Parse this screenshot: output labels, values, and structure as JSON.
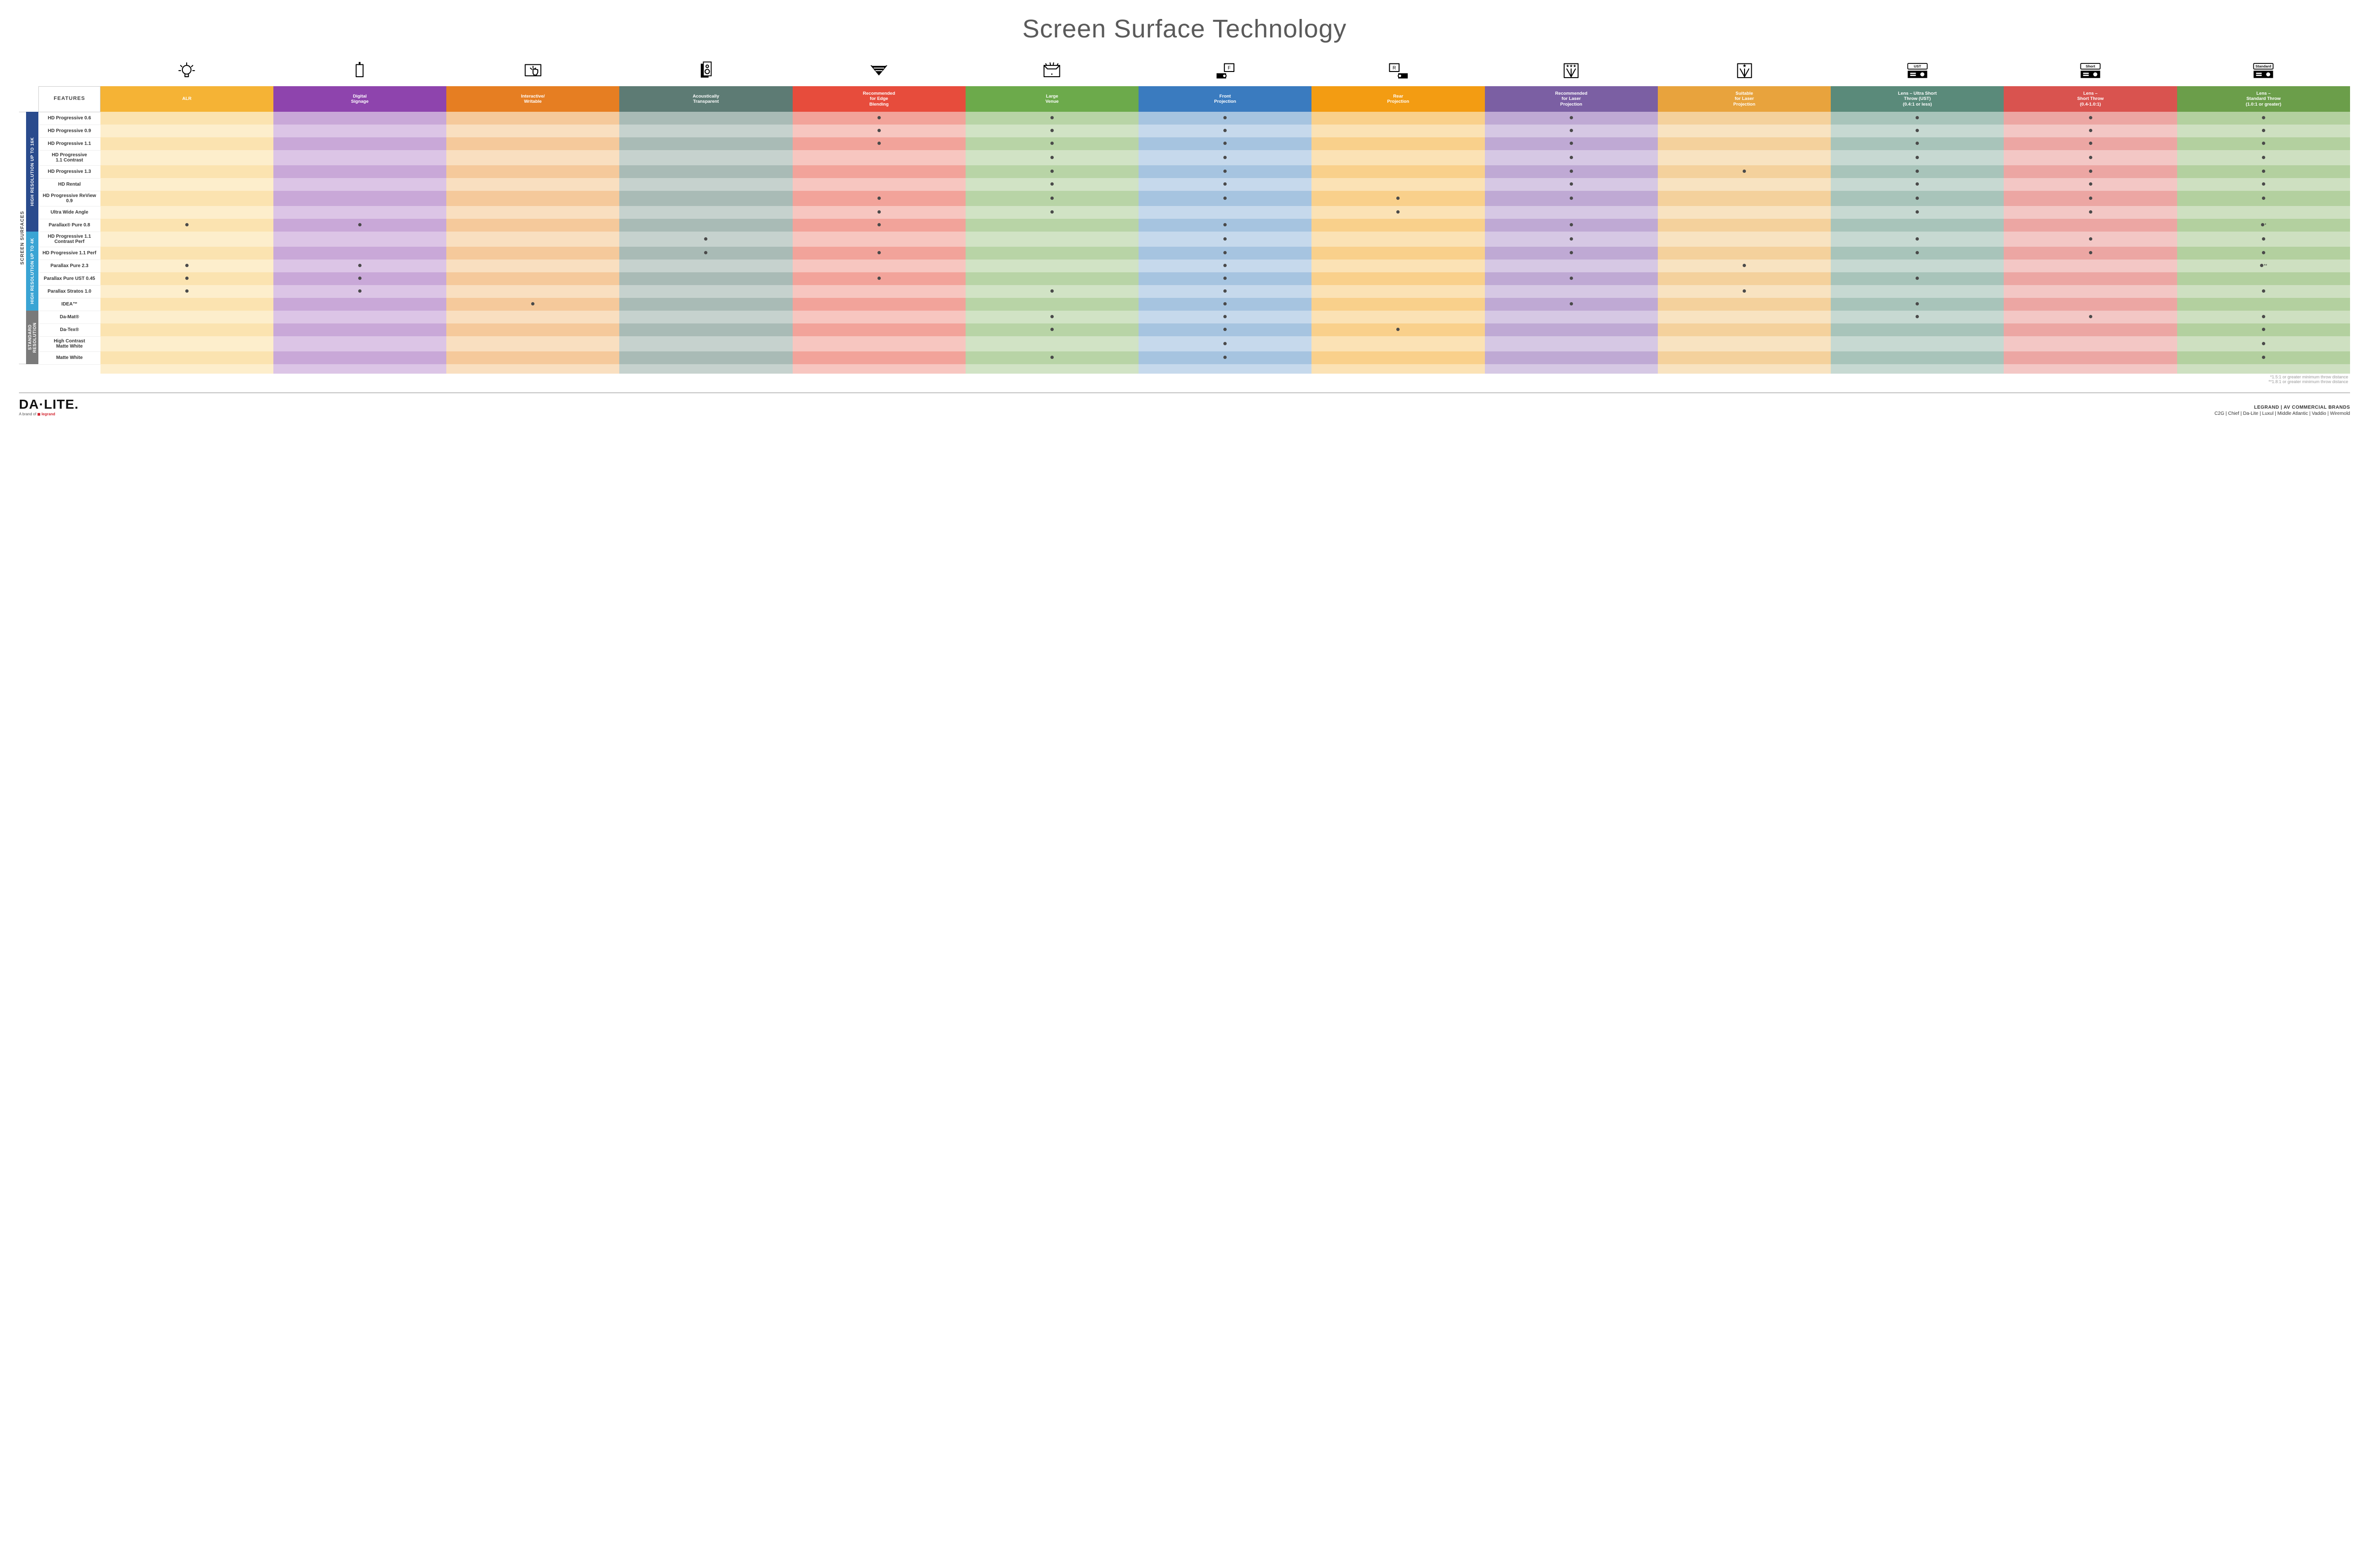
{
  "title": "Screen Surface Technology",
  "side_label": "SCREEN SURFACES",
  "features_label": "FEATURES",
  "columns": [
    {
      "key": "alr",
      "label": "ALR",
      "color": "#f5b335",
      "light": "#fbe3b0",
      "lighter": "#fdeecc"
    },
    {
      "key": "signage",
      "label": "Digital\nSignage",
      "color": "#8e44ad",
      "light": "#c9a8d8",
      "lighter": "#dcc5e6"
    },
    {
      "key": "interactive",
      "label": "Interactive/\nWritable",
      "color": "#e67e22",
      "light": "#f5c99b",
      "lighter": "#f9dfc0"
    },
    {
      "key": "acoustic",
      "label": "Acoustically\nTransparent",
      "color": "#5d7b74",
      "light": "#a9bbb6",
      "lighter": "#c6d2ce"
    },
    {
      "key": "edge",
      "label": "Recommended\nfor Edge\nBlending",
      "color": "#e74c3c",
      "light": "#f2a39a",
      "lighter": "#f7c6c0"
    },
    {
      "key": "large",
      "label": "Large\nVenue",
      "color": "#6caa4b",
      "light": "#b8d4a6",
      "lighter": "#d1e3c5"
    },
    {
      "key": "front",
      "label": "Front\nProjection",
      "color": "#3a7bbf",
      "light": "#a6c4e0",
      "lighter": "#c6d9ec"
    },
    {
      "key": "rear",
      "label": "Rear\nProjection",
      "color": "#f39c12",
      "light": "#f9d08b",
      "lighter": "#fbe2b5"
    },
    {
      "key": "reclaser",
      "label": "Recommended\nfor Laser\nProjection",
      "color": "#7b5fa3",
      "light": "#bfa9d4",
      "lighter": "#d6c8e4"
    },
    {
      "key": "suitlaser",
      "label": "Suitable\nfor Laser\nProjection",
      "color": "#e8a33d",
      "light": "#f4d19c",
      "lighter": "#f8e3c1"
    },
    {
      "key": "ust",
      "label": "Lens – Ultra Short\nThrow (UST)\n(0.4:1 or less)",
      "color": "#5a8a7a",
      "light": "#a8c4ba",
      "lighter": "#c7d9d2"
    },
    {
      "key": "short",
      "label": "Lens –\nShort Throw\n(0.4-1.0:1)",
      "color": "#d9534f",
      "light": "#eca6a3",
      "lighter": "#f3c7c5"
    },
    {
      "key": "std",
      "label": "Lens –\nStandard Throw\n(1.0:1 or greater)",
      "color": "#6b9e4a",
      "light": "#b3d09f",
      "lighter": "#cee0c1"
    }
  ],
  "groups": [
    {
      "key": "g16k",
      "label": "HIGH RESOLUTION UP TO 16K",
      "color": "#2a4b8d"
    },
    {
      "key": "g4k",
      "label": "HIGH RESOLUTION UP TO 4K",
      "color": "#3aa4d4"
    },
    {
      "key": "gstd",
      "label": "STANDARD\nRESOLUTION",
      "color": "#7a7a7a"
    }
  ],
  "rows": [
    {
      "group": "g16k",
      "label": "HD Progressive 0.6",
      "dots": [
        "edge",
        "large",
        "front",
        "reclaser",
        "ust",
        "short",
        "std"
      ]
    },
    {
      "group": "g16k",
      "label": "HD Progressive 0.9",
      "dots": [
        "edge",
        "large",
        "front",
        "reclaser",
        "ust",
        "short",
        "std"
      ]
    },
    {
      "group": "g16k",
      "label": "HD Progressive 1.1",
      "dots": [
        "edge",
        "large",
        "front",
        "reclaser",
        "ust",
        "short",
        "std"
      ]
    },
    {
      "group": "g16k",
      "label": "HD Progressive\n1.1 Contrast",
      "dots": [
        "large",
        "front",
        "reclaser",
        "ust",
        "short",
        "std"
      ]
    },
    {
      "group": "g16k",
      "label": "HD Progressive 1.3",
      "dots": [
        "large",
        "front",
        "reclaser",
        "suitlaser",
        "ust",
        "short",
        "std"
      ]
    },
    {
      "group": "g16k",
      "label": "HD Rental",
      "dots": [
        "large",
        "front",
        "reclaser",
        "ust",
        "short",
        "std"
      ]
    },
    {
      "group": "g16k",
      "label": "HD Progressive ReView 0.9",
      "dots": [
        "edge",
        "large",
        "front",
        "rear",
        "reclaser",
        "ust",
        "short",
        "std"
      ]
    },
    {
      "group": "g16k",
      "label": "Ultra Wide Angle",
      "dots": [
        "edge",
        "large",
        "rear",
        "ust",
        "short"
      ]
    },
    {
      "group": "g16k",
      "label": "Parallax® Pure 0.8",
      "dots": [
        "alr",
        "signage",
        "edge",
        "front",
        "reclaser",
        "std"
      ],
      "suffix": "*"
    },
    {
      "group": "g4k",
      "label": "HD Progressive 1.1\nContrast Perf",
      "dots": [
        "acoustic",
        "front",
        "reclaser",
        "ust",
        "short",
        "std"
      ]
    },
    {
      "group": "g4k",
      "label": "HD Progressive 1.1 Perf",
      "dots": [
        "acoustic",
        "edge",
        "front",
        "reclaser",
        "ust",
        "short",
        "std"
      ]
    },
    {
      "group": "g4k",
      "label": "Parallax Pure 2.3",
      "dots": [
        "alr",
        "signage",
        "front",
        "suitlaser",
        "std"
      ],
      "suffix": "**"
    },
    {
      "group": "g4k",
      "label": "Parallax Pure UST 0.45",
      "dots": [
        "alr",
        "signage",
        "edge",
        "front",
        "reclaser",
        "ust"
      ]
    },
    {
      "group": "g4k",
      "label": "Parallax Stratos 1.0",
      "dots": [
        "alr",
        "signage",
        "large",
        "front",
        "suitlaser",
        "std"
      ]
    },
    {
      "group": "g4k",
      "label": "IDEA™",
      "dots": [
        "interactive",
        "front",
        "reclaser",
        "ust"
      ]
    },
    {
      "group": "gstd",
      "label": "Da-Mat®",
      "dots": [
        "large",
        "front",
        "ust",
        "short",
        "std"
      ]
    },
    {
      "group": "gstd",
      "label": "Da-Tex®",
      "dots": [
        "large",
        "front",
        "rear",
        "std"
      ]
    },
    {
      "group": "gstd",
      "label": "High Contrast\nMatte White",
      "dots": [
        "front",
        "std"
      ]
    },
    {
      "group": "gstd",
      "label": "Matte White",
      "dots": [
        "large",
        "front",
        "std"
      ]
    }
  ],
  "footnotes": [
    "*1.5:1 or greater minimum throw distance",
    "**1.8:1 or greater minimum throw distance"
  ],
  "footer": {
    "brand": "DA·LITE.",
    "sub_prefix": "A brand of ",
    "sub_brand": "legrand",
    "right_top": "LEGRAND | AV COMMERCIAL BRANDS",
    "right_brands": "C2G  |  Chief  |  Da-Lite  |  Luxul  |  Middle Atlantic  |  Vaddio  |  Wiremold"
  },
  "icons": {
    "alr": "bulb",
    "signage": "signage",
    "interactive": "touch",
    "acoustic": "speaker",
    "edge": "blend",
    "large": "venue",
    "front": "front",
    "rear": "rear",
    "reclaser": "laser3",
    "suitlaser": "laser1",
    "ust": "proj-ust",
    "short": "proj-short",
    "std": "proj-std"
  },
  "proj_labels": {
    "ust": "UST",
    "short": "Short",
    "std": "Standard"
  }
}
